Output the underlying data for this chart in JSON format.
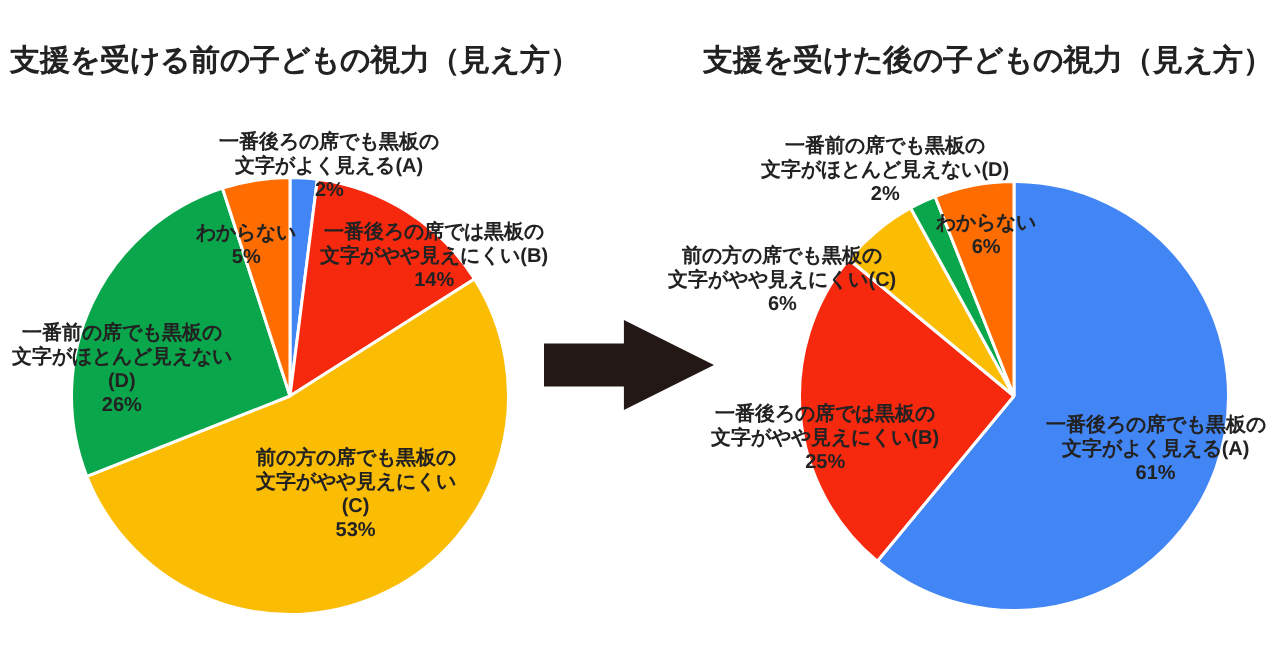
{
  "chart_data": [
    {
      "type": "pie",
      "title": "支援を受ける前の子どもの視力（見え方）",
      "categories": [
        "一番後ろの席でも黒板の文字がよく見える(A)",
        "一番後ろの席では黒板の文字がやや見えにくい(B)",
        "前の方の席でも黒板の文字がやや見えにくい(C)",
        "一番前の席でも黒板の文字がほとんど見えない(D)",
        "わからない"
      ],
      "values": [
        2,
        14,
        53,
        26,
        5
      ],
      "value_labels": [
        "2%",
        "14%",
        "53%",
        "26%",
        "5%"
      ],
      "colors": [
        "#4285f4",
        "#f6290f",
        "#fbbc04",
        "#0aa64c",
        "#ff6d01"
      ]
    },
    {
      "type": "pie",
      "title": "支援を受けた後の子どもの視力（見え方）",
      "categories": [
        "一番後ろの席でも黒板の文字がよく見える(A)",
        "一番後ろの席では黒板の文字がやや見えにくい(B)",
        "前の方の席でも黒板の文字がやや見えにくい(C)",
        "一番前の席でも黒板の文字がほとんど見えない(D)",
        "わからない"
      ],
      "values": [
        61,
        25,
        6,
        2,
        6
      ],
      "value_labels": [
        "61%",
        "25%",
        "6%",
        "2%",
        "6%"
      ],
      "colors": [
        "#4285f4",
        "#f6290f",
        "#fbbc04",
        "#0aa64c",
        "#ff6d01"
      ]
    }
  ]
}
